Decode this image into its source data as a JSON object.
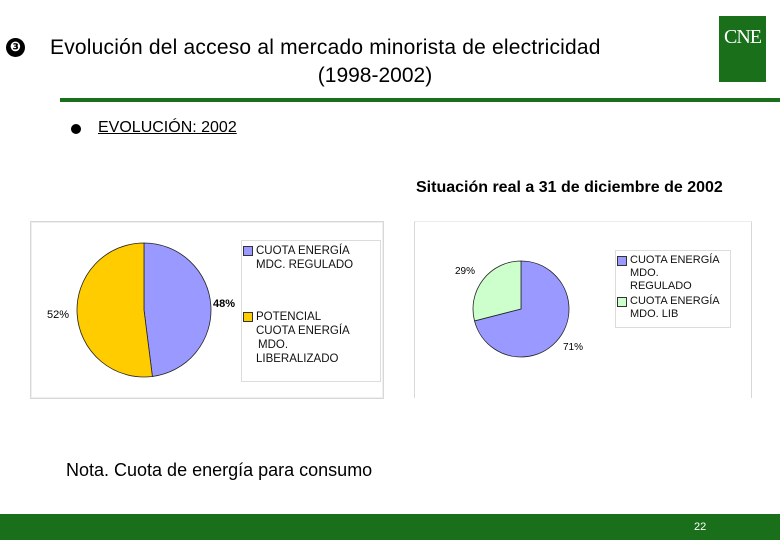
{
  "slide": {
    "number_bullet": "❸",
    "title_line1": "Evolución del acceso al mercado minorista de electricidad",
    "title_line2": "(1998-2002)",
    "logo_text": "CNE",
    "section_label": "EVOLUCIÓN: 2002",
    "situation_label": "Situación real a 31 de diciembre de 2002",
    "note": "Nota. Cuota de energía para consumo",
    "page_number": "22"
  },
  "chart_data": [
    {
      "type": "pie",
      "slices": [
        {
          "label": "CUOTA ENERGÍA MDC. REGULADO",
          "legend_lines": [
            "CUOTA ENERGÍA",
            "MDC. REGULADO"
          ],
          "value": 48,
          "value_label": "48%",
          "color": "#9999ff"
        },
        {
          "label": "POTENCIAL CUOTA ENERGÍA MDO. LIBERALIZADO",
          "legend_lines": [
            "POTENCIAL",
            "CUOTA ENERGÍA",
            "MDO.",
            "LIBERALIZADO"
          ],
          "value": 52,
          "value_label": "52%",
          "color": "#ffcc00"
        }
      ]
    },
    {
      "type": "pie",
      "slices": [
        {
          "label": "CUOTA ENERGÍA MDO. REGULADO",
          "legend_lines": [
            "CUOTA ENERGÍA",
            "MDO.",
            "REGULADO"
          ],
          "value": 71,
          "value_label": "71%",
          "color": "#9999ff"
        },
        {
          "label": "CUOTA ENERGÍA MDO. LIB",
          "legend_lines": [
            "CUOTA ENERGÍA",
            "MDO. LIB"
          ],
          "value": 29,
          "value_label": "29%",
          "color": "#ccffcc"
        }
      ]
    }
  ]
}
